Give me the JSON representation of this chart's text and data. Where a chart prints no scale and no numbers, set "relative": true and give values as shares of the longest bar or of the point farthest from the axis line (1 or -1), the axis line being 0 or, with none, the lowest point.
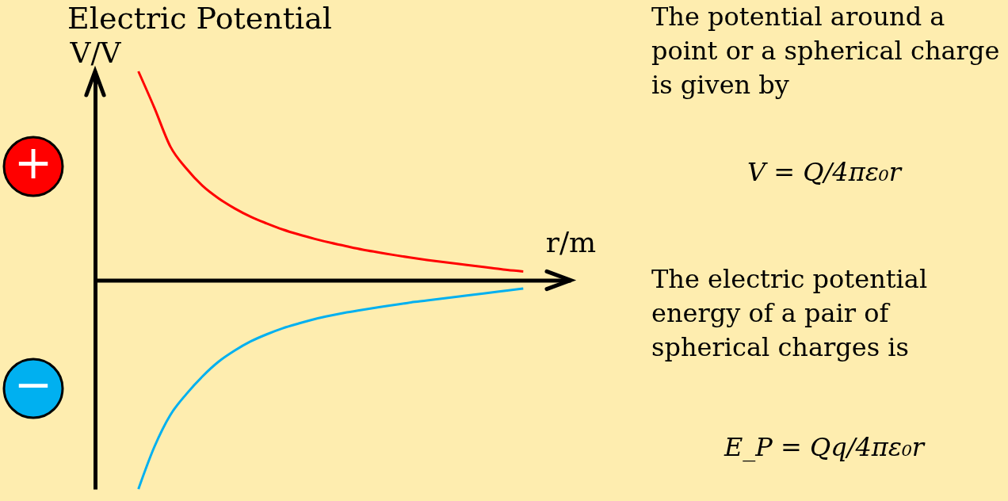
{
  "chart_data": {
    "type": "line",
    "title": "Electric Potential",
    "xlabel": "r/m",
    "ylabel": "V/V",
    "relative": true,
    "tick_labels": false,
    "legend": "left",
    "line_style": "solid",
    "categories": [
      null,
      null,
      null,
      null,
      null,
      null,
      null,
      null,
      null,
      null,
      null,
      null,
      null,
      null,
      null,
      null,
      null,
      null,
      null,
      null,
      null,
      null,
      null,
      null,
      null
    ],
    "series": [
      {
        "name": "+",
        "color": "#ff0000",
        "values": [
          1.0,
          0.825,
          0.639,
          0.534,
          0.452,
          0.392,
          0.344,
          0.304,
          0.272,
          0.243,
          0.219,
          0.198,
          0.179,
          0.162,
          0.146,
          0.133,
          0.12,
          0.108,
          0.097,
          0.087,
          0.078,
          0.068,
          0.059,
          0.049,
          0.042
        ]
      },
      {
        "name": "−",
        "color": "#00b0f0",
        "values": [
          -1.0,
          -0.797,
          -0.644,
          -0.544,
          -0.46,
          -0.39,
          -0.337,
          -0.293,
          -0.259,
          -0.23,
          -0.207,
          -0.186,
          -0.169,
          -0.154,
          -0.141,
          -0.129,
          -0.118,
          -0.106,
          -0.097,
          -0.087,
          -0.078,
          -0.068,
          -0.059,
          -0.049,
          -0.04
        ]
      }
    ],
    "annotations": [
      "The potential around a point or a spherical charge is given by",
      "V = Q/4πε₀r",
      "The electric potential energy of a pair of spherical charges is",
      "E_P = Qq/4πε₀r"
    ]
  }
}
